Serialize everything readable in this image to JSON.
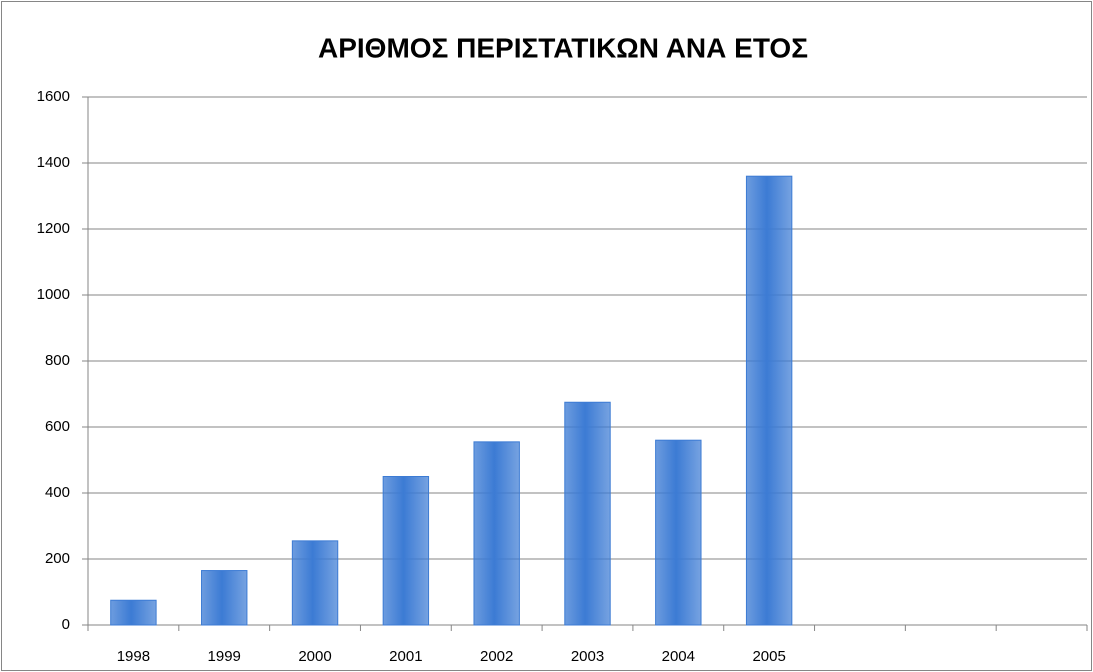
{
  "chart_data": {
    "type": "bar",
    "title": "ΑΡΙΘΜΟΣ ΠΕΡΙΣΤΑΤΙΚΩΝ ΑΝΑ ΕΤΟΣ",
    "categories": [
      "1998",
      "1999",
      "2000",
      "2001",
      "2002",
      "2003",
      "2004",
      "2005",
      null,
      null,
      null
    ],
    "values": [
      75,
      165,
      255,
      450,
      555,
      675,
      560,
      1360,
      null,
      null,
      null
    ],
    "color": "#3c7bd4",
    "ylim": [
      0,
      1600
    ],
    "yticks": [
      0,
      200,
      400,
      600,
      800,
      1000,
      1200,
      1400,
      1600
    ],
    "grid": true
  }
}
